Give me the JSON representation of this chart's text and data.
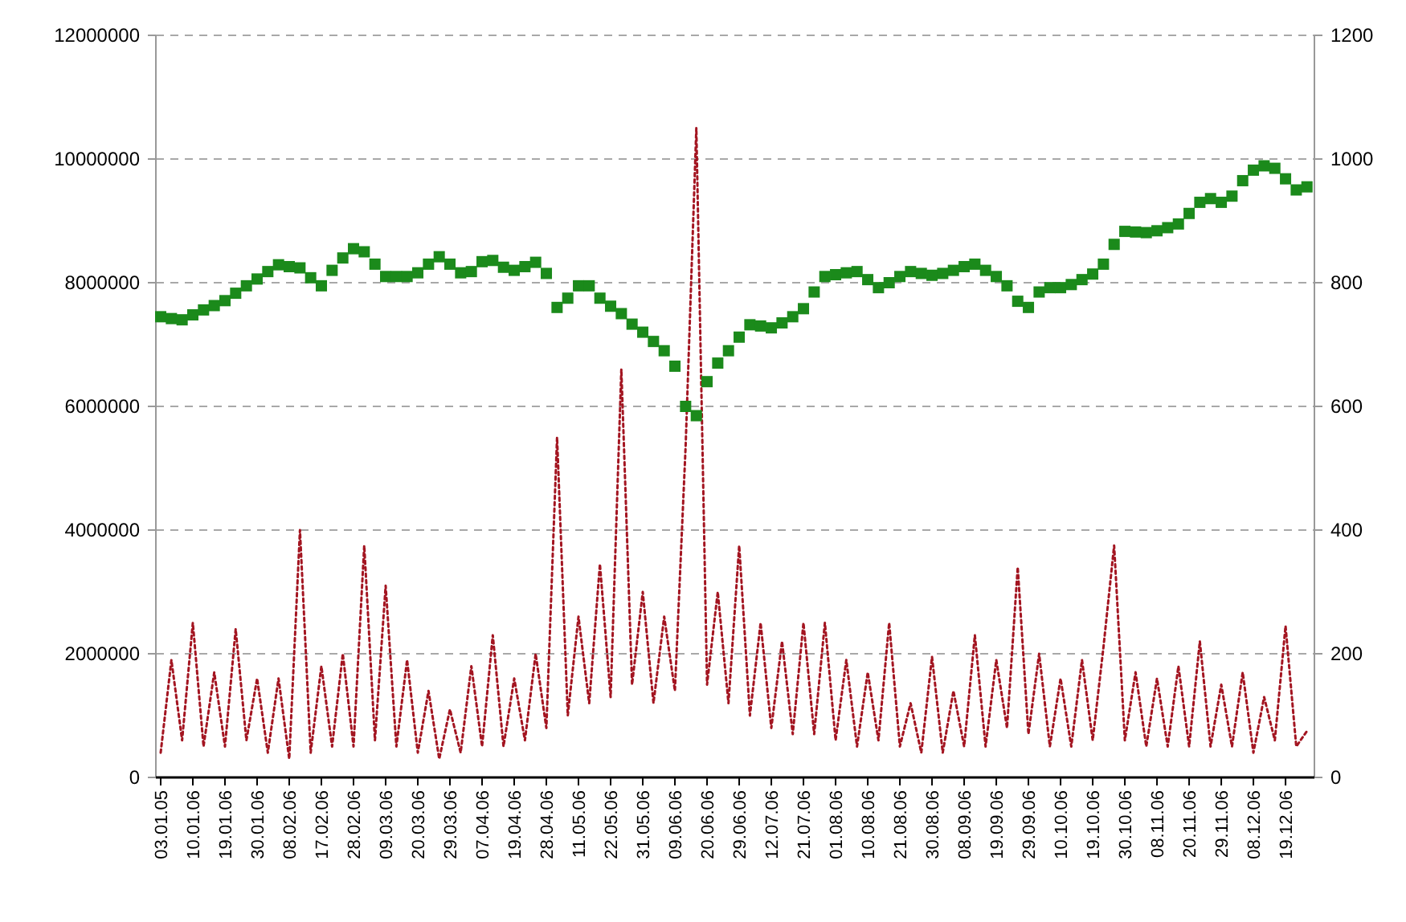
{
  "chart_data": {
    "type": "line",
    "categories": [
      "03.01.05",
      null,
      null,
      "10.01.06",
      null,
      null,
      "19.01.06",
      null,
      null,
      "30.01.06",
      null,
      null,
      "08.02.06",
      null,
      null,
      "17.02.06",
      null,
      null,
      "28.02.06",
      null,
      null,
      "09.03.06",
      null,
      null,
      "20.03.06",
      null,
      null,
      "29.03.06",
      null,
      null,
      "07.04.06",
      null,
      null,
      "19.04.06",
      null,
      null,
      "28.04.06",
      null,
      null,
      "11.05.06",
      null,
      null,
      "22.05.06",
      null,
      null,
      "31.05.06",
      null,
      null,
      "09.06.06",
      null,
      null,
      "20.06.06",
      null,
      null,
      "29.06.06",
      null,
      null,
      "12.07.06",
      null,
      null,
      "21.07.06",
      null,
      null,
      "01.08.06",
      null,
      null,
      "10.08.06",
      null,
      null,
      "21.08.06",
      null,
      null,
      "30.08.06",
      null,
      null,
      "08.09.06",
      null,
      null,
      "19.09.06",
      null,
      null,
      "29.09.06",
      null,
      null,
      "10.10.06",
      null,
      null,
      "19.10.06",
      null,
      null,
      "30.10.06",
      null,
      null,
      "08.11.06",
      null,
      null,
      "20.11.06",
      null,
      null,
      "29.11.06",
      null,
      null,
      "08.12.06",
      null,
      null,
      "19.12.06",
      null,
      null
    ],
    "series": [
      {
        "color": "#a31521",
        "line_style": "dotted",
        "values": [
          400000,
          1900000,
          600000,
          2500000,
          500000,
          1700000,
          500000,
          2400000,
          600000,
          1600000,
          400000,
          1600000,
          300000,
          4000000,
          400000,
          1800000,
          500000,
          2000000,
          500000,
          3750000,
          600000,
          3100000,
          500000,
          1900000,
          400000,
          1400000,
          300000,
          1100000,
          400000,
          1800000,
          500000,
          2300000,
          500000,
          1600000,
          600000,
          2000000,
          800000,
          5500000,
          1000000,
          2600000,
          1200000,
          3450000,
          1300000,
          6600000,
          1500000,
          3000000,
          1200000,
          2600000,
          1400000,
          5350000,
          10500000,
          1500000,
          3000000,
          1200000,
          3750000,
          1000000,
          2500000,
          800000,
          2200000,
          700000,
          2500000,
          700000,
          2500000,
          600000,
          1900000,
          500000,
          1700000,
          600000,
          2500000,
          500000,
          1200000,
          400000,
          1950000,
          400000,
          1400000,
          500000,
          2300000,
          500000,
          1900000,
          800000,
          3400000,
          700000,
          2000000,
          500000,
          1600000,
          500000,
          1900000,
          600000,
          2100000,
          3750000,
          600000,
          1700000,
          500000,
          1600000,
          500000,
          1800000,
          500000,
          2200000,
          500000,
          1500000,
          500000,
          1700000,
          400000,
          1300000,
          600000,
          2450000,
          500000,
          750000
        ]
      },
      {
        "type": "scatter",
        "axis": "y2",
        "color": "#1b8a1b",
        "marker": "square",
        "values": [
          745,
          742,
          740,
          748,
          756,
          763,
          771,
          783,
          795,
          806,
          818,
          829,
          826,
          824,
          808,
          795,
          820,
          840,
          855,
          850,
          830,
          810,
          810,
          810,
          816,
          830,
          842,
          830,
          816,
          818,
          834,
          836,
          825,
          820,
          826,
          833,
          815,
          760,
          775,
          795,
          795,
          775,
          762,
          750,
          733,
          720,
          705,
          690,
          665,
          600,
          585,
          640,
          670,
          690,
          712,
          732,
          730,
          727,
          735,
          745,
          758,
          785,
          810,
          813,
          816,
          818,
          805,
          792,
          800,
          810,
          818,
          815,
          812,
          815,
          820,
          826,
          830,
          820,
          810,
          795,
          770,
          760,
          785,
          792,
          792,
          797,
          805,
          814,
          830,
          862,
          883,
          882,
          881,
          884,
          889,
          895,
          912,
          930,
          936,
          930,
          940,
          965,
          982,
          989,
          985,
          968,
          950,
          955
        ]
      }
    ],
    "ylim": [
      0,
      12000000
    ],
    "yticks": [
      0,
      2000000,
      4000000,
      6000000,
      8000000,
      10000000,
      12000000
    ],
    "y2lim": [
      0,
      1200
    ],
    "y2ticks": [
      0,
      200,
      400,
      600,
      800,
      1000,
      1200
    ],
    "grid": "y"
  }
}
